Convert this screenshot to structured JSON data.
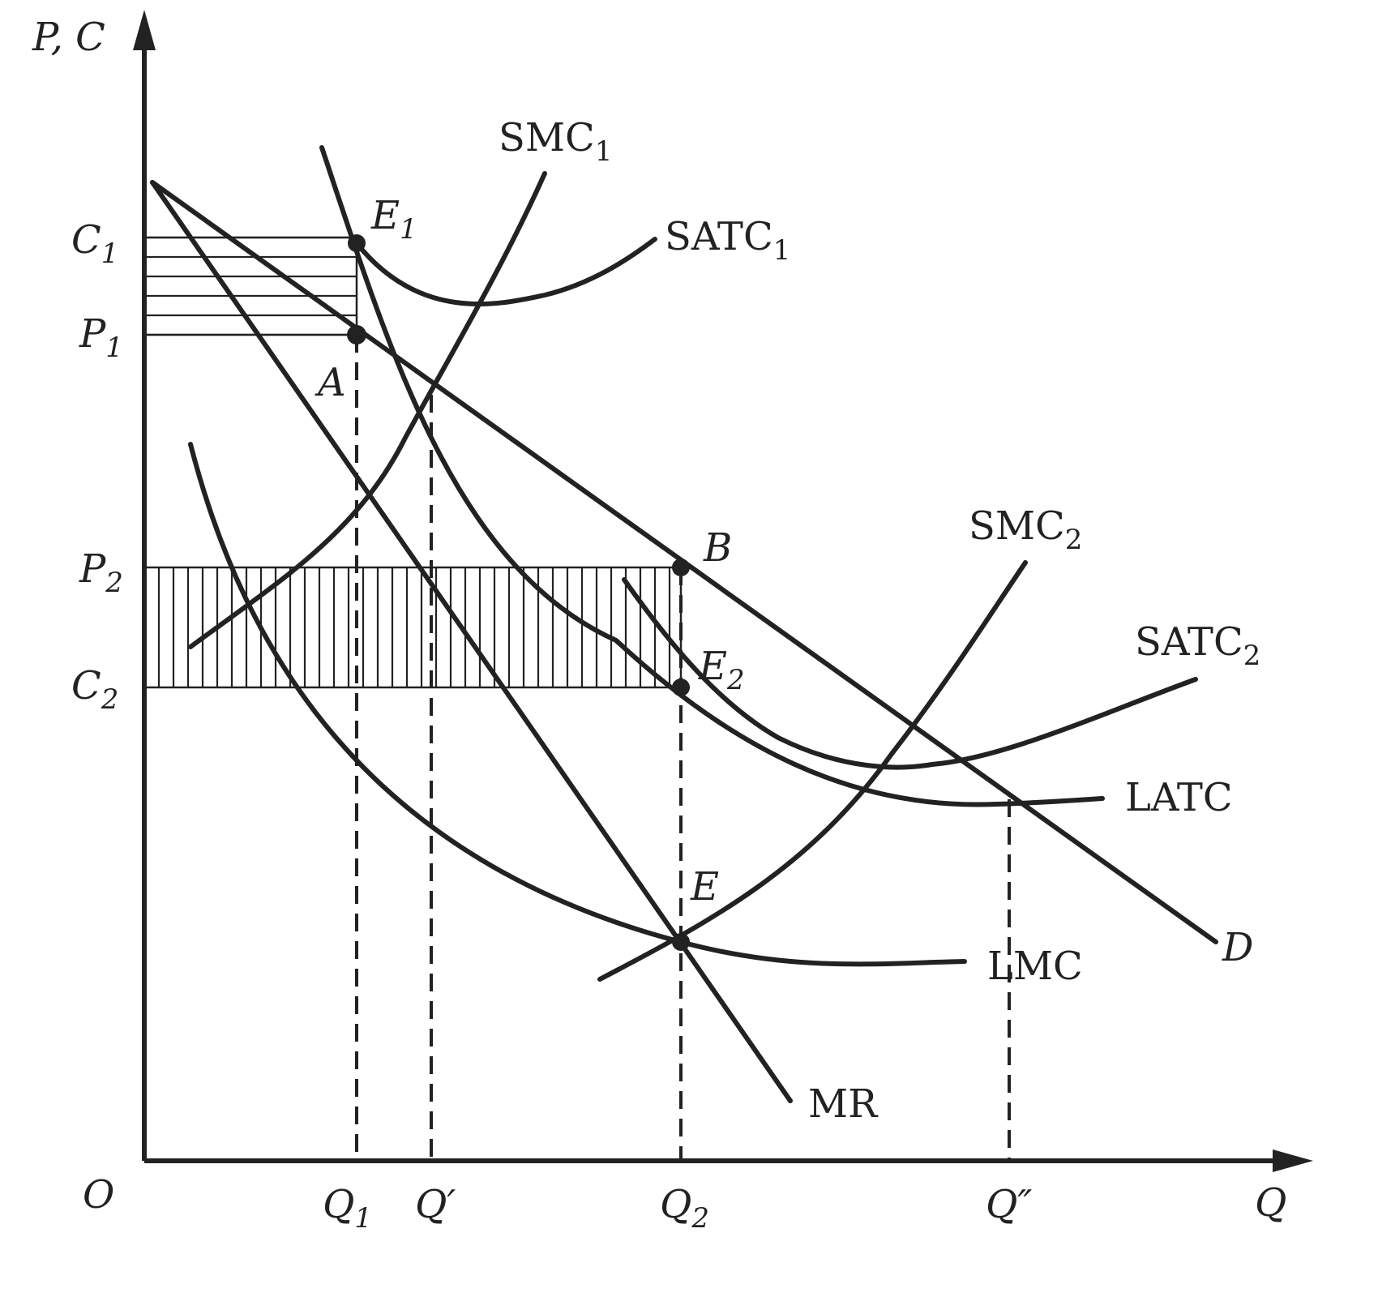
{
  "axes": {
    "y_label": "P, C",
    "x_label": "Q",
    "origin": "O"
  },
  "y_ticks": [
    {
      "main": "C",
      "sub": "1"
    },
    {
      "main": "P",
      "sub": "1"
    },
    {
      "main": "P",
      "sub": "2"
    },
    {
      "main": "C",
      "sub": "2"
    }
  ],
  "x_ticks": [
    {
      "main": "Q",
      "sub": "1",
      "prime": ""
    },
    {
      "main": "Q",
      "sub": "",
      "prime": "′"
    },
    {
      "main": "Q",
      "sub": "2",
      "prime": ""
    },
    {
      "main": "Q",
      "sub": "",
      "prime": "″"
    }
  ],
  "curves": {
    "smc1": {
      "main": "SMC",
      "sub": "1"
    },
    "satc1": {
      "main": "SATC",
      "sub": "1"
    },
    "smc2": {
      "main": "SMC",
      "sub": "2"
    },
    "satc2": {
      "main": "SATC",
      "sub": "2"
    },
    "latc": "LATC",
    "lmc": "LMC",
    "mr": "MR",
    "d": "D"
  },
  "points": {
    "e1": {
      "main": "E",
      "sub": "1"
    },
    "a": "A",
    "b": "B",
    "e2": {
      "main": "E",
      "sub": "2"
    },
    "e": "E"
  },
  "colors": {
    "ink": "#222222",
    "paper": "#ffffff"
  }
}
